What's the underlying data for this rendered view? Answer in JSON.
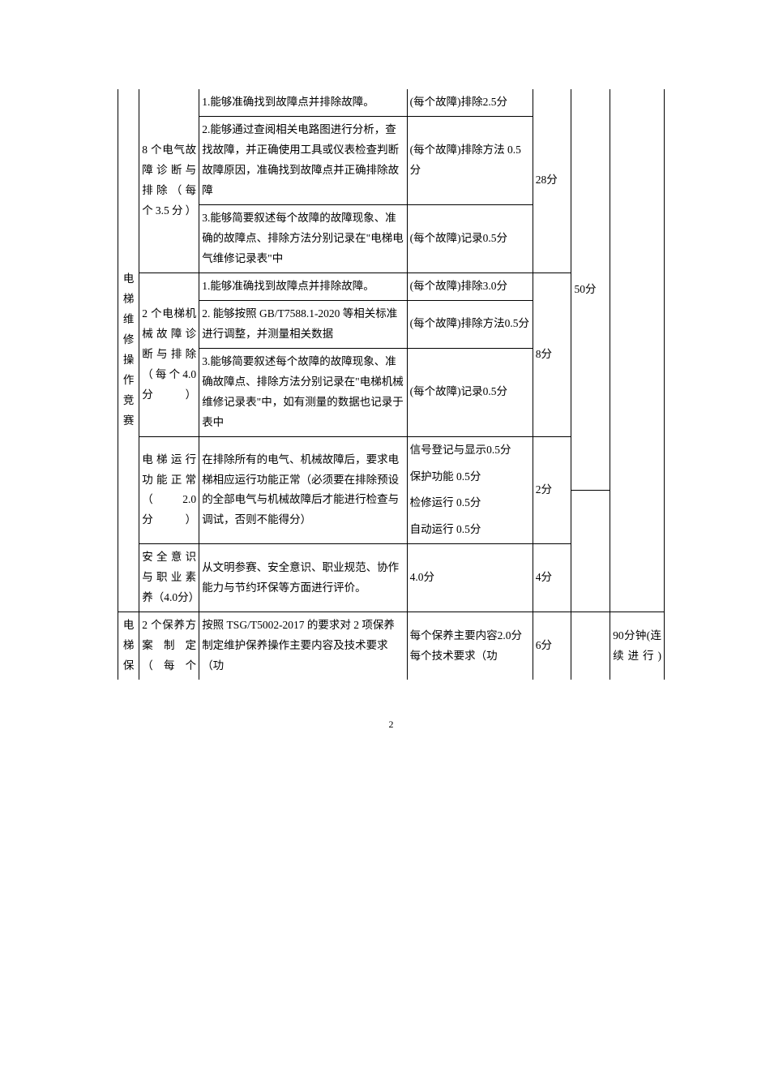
{
  "pageNumber": "2",
  "leftHeader1": "电梯维修操作竞赛",
  "leftHeader2": "电梯保",
  "section1": {
    "title": "8 个电气故障诊断与排除（每个3.5分）",
    "rows": [
      {
        "criteria": "1.能够准确找到故障点并排除故障。",
        "score": "(每个故障)排除2.5分"
      },
      {
        "criteria": "2.能够通过查阅相关电路图进行分析，查找故障，并正确使用工具或仪表检查判断故障原因，准确找到故障点并正确排除故障",
        "score": "(每个故障)排除方法 0.5分"
      },
      {
        "criteria": "3.能够简要叙述每个故障的故障现象、准确的故障点、排除方法分别记录在\"电梯电气维修记录表\"中",
        "score": "(每个故障)记录0.5分"
      }
    ],
    "subtotal": "28分"
  },
  "section2": {
    "title": "2 个电梯机械故障诊断与排除（每个4.0分）",
    "rows": [
      {
        "criteria": "1.能够准确找到故障点并排除故障。",
        "score": "(每个故障)排除3.0分"
      },
      {
        "criteria": "2. 能够按照 GB/T7588.1-2020 等相关标准进行调整，并测量相关数据",
        "score": "(每个故障)排除方法0.5分"
      },
      {
        "criteria": "3.能够简要叙述每个故障的故障现象、准确故障点、排除方法分别记录在\"电梯机械维修记录表\"中，如有测量的数据也记录于表中",
        "score": "(每个故障)记录0.5分"
      }
    ],
    "subtotal": "8分",
    "total": "50分"
  },
  "section3": {
    "title": "电梯运行功能正常（　　2.0分）",
    "criteria": "在排除所有的电气、机械故障后，要求电梯相应运行功能正常（必须要在排除预设的全部电气与机械故障后才能进行检查与调试，否则不能得分）",
    "scores": {
      "s1": "信号登记与显示0.5分",
      "s2": "保护功能 0.5分",
      "s3": "检修运行 0.5分",
      "s4": "自动运行 0.5分"
    },
    "subtotal": "2分"
  },
  "section4": {
    "title": "安全意识与职业素养（4.0分）",
    "criteria": "从文明参赛、安全意识、职业规范、协作能力与节约环保等方面进行评价。",
    "score": "4.0分",
    "subtotal": "4分"
  },
  "section5": {
    "title": "2 个保养方案制定（每个",
    "criteria": "按照 TSG/T5002-2017 的要求对 2 项保养制定维护保养操作主要内容及技术要求（功",
    "score1": "每个保养主要内容2.0分",
    "score2": "每个技术要求（功",
    "subtotal": "6分",
    "time": "90分钟(连续进行)"
  }
}
